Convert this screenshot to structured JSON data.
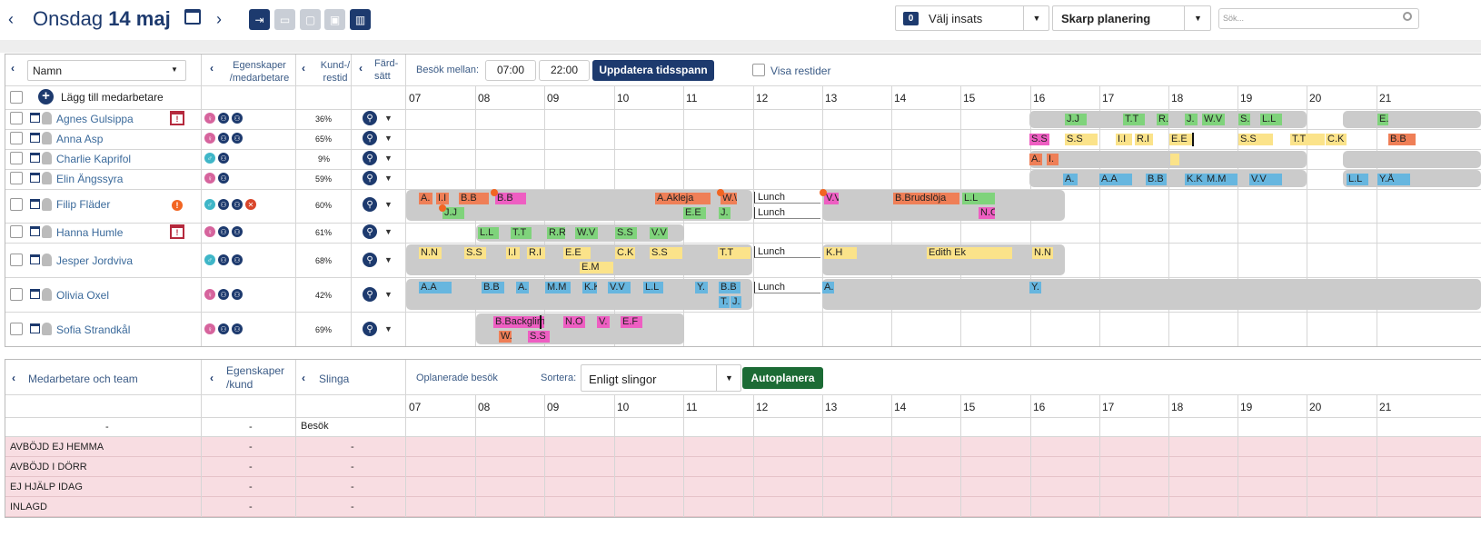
{
  "header": {
    "day": "Onsdag",
    "date": "14 maj",
    "insats_count": "0",
    "insats_label": "Välj insats",
    "plan_label": "Skarp planering",
    "search_placeholder": "Sök..."
  },
  "top_table": {
    "name_select": "Namn",
    "col_props": "Egenskaper /medarbetare",
    "col_kund": "Kund-/ restid",
    "col_fard": "Färd- sätt",
    "between_label": "Besök mellan:",
    "from": "07:00",
    "to": "22:00",
    "update_btn": "Uppdatera tidsspann",
    "show_travel": "Visa restider",
    "add_employee": "Lägg till medarbetare"
  },
  "hours": [
    "07",
    "08",
    "09",
    "10",
    "11",
    "12",
    "13",
    "14",
    "15",
    "16",
    "17",
    "18",
    "19",
    "20",
    "21"
  ],
  "employees": [
    {
      "name": "Agnes Gulsippa",
      "pct": "36%"
    },
    {
      "name": "Anna Asp",
      "pct": "65%"
    },
    {
      "name": "Charlie Kaprifol",
      "pct": "9%"
    },
    {
      "name": "Elin Ängssyra",
      "pct": "59%"
    },
    {
      "name": "Filip Fläder",
      "pct": "60%"
    },
    {
      "name": "Hanna Humle",
      "pct": "61%"
    },
    {
      "name": "Jesper Jordviva",
      "pct": "68%"
    },
    {
      "name": "Olivia Oxel",
      "pct": "42%"
    },
    {
      "name": "Sofia Strandkål",
      "pct": "69%"
    }
  ],
  "visits": {
    "agnes": [
      "J.J",
      "T.T",
      "R.",
      "J.",
      "W.V",
      "S.",
      "L.L",
      "E."
    ],
    "anna": [
      "S.S",
      "S.S",
      "I.I",
      "R.I",
      "E.E",
      "S.S",
      "T.T",
      "C.K",
      "B.B"
    ],
    "charlie": [
      "A.",
      "I."
    ],
    "elin": [
      "A.",
      "A.A",
      "B.B",
      "K.K",
      "M.M",
      "V.V",
      "L.L",
      "Y.Å"
    ],
    "filip": [
      "A.",
      "I.I",
      "B.B",
      "B.B",
      "A.Akleja",
      "W.\\",
      "L.L",
      "J.J",
      "E.E",
      "J.",
      "V.V",
      "B.Brudslöja",
      "N.O"
    ],
    "hanna": [
      "L.L",
      "T.T",
      "R.R",
      "W.V",
      "S.S",
      "V.V"
    ],
    "jesper": [
      "N.N",
      "S.S",
      "I.I",
      "R.I",
      "E.E",
      "C.K",
      "S.S",
      "T.T",
      "E.M",
      "K.H",
      "Edith Ek",
      "N.N"
    ],
    "olivia": [
      "A.A",
      "B.B",
      "A.",
      "M.M",
      "K.K",
      "V.V",
      "L.L",
      "Y.",
      "B.B",
      "T.",
      "J.",
      "A.",
      "Y."
    ],
    "sofia": [
      "B.Backglim",
      "N.O",
      "V.",
      "E.F",
      "W.",
      "S.S"
    ],
    "lunch": "Lunch"
  },
  "bottom": {
    "col_team": "Medarbetare och team",
    "col_props": "Egenskaper /kund",
    "col_slinga": "Slinga",
    "unplanned": "Oplanerade besök",
    "sort_label": "Sortera:",
    "sort_value": "Enligt slingor",
    "autoplan_btn": "Autoplanera",
    "dash": "-",
    "besok": "Besök",
    "rows": [
      {
        "label": "AVBÖJD EJ HEMMA",
        "a": "-",
        "b": "-"
      },
      {
        "label": "AVBÖJD I DÖRR",
        "a": "-",
        "b": "-"
      },
      {
        "label": "EJ HJÄLP IDAG",
        "a": "-",
        "b": "-"
      },
      {
        "label": "INLAGD",
        "a": "-",
        "b": "-"
      }
    ]
  },
  "colors": {
    "navy": "#1d3a6e",
    "green": "#7fd37b",
    "yellow": "#fbe38a",
    "blue": "#67b6df",
    "orange": "#ef7f57",
    "pink": "#ee5ec2",
    "bar": "#cbcbcb",
    "autoplan": "#1c6b35"
  }
}
